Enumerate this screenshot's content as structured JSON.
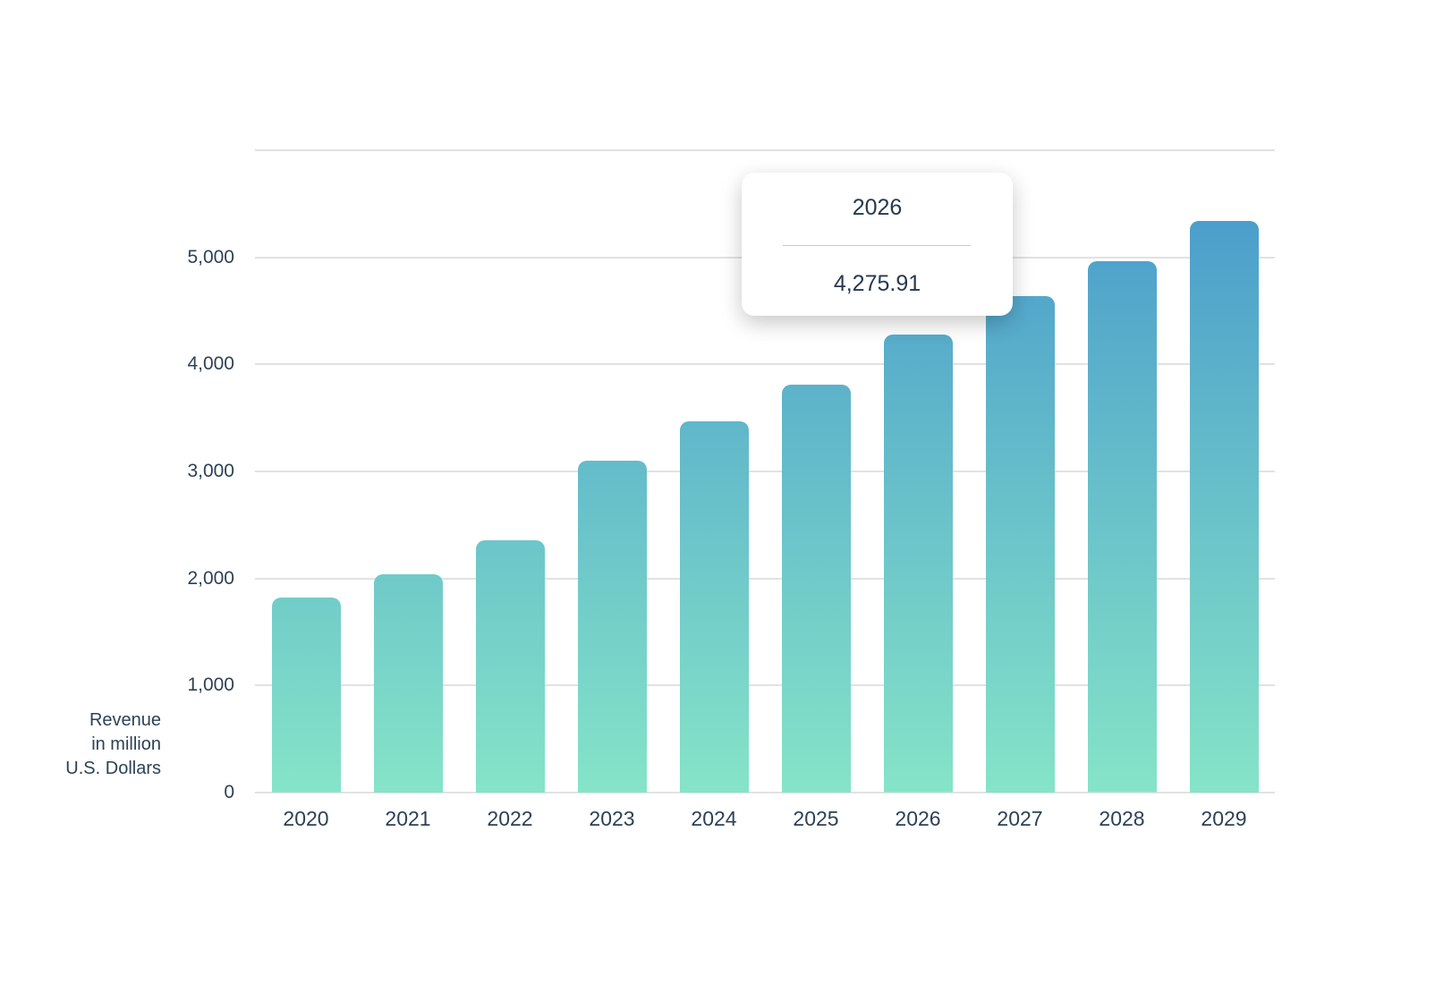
{
  "colors": {
    "background": "#ffffff",
    "text": "#2e4156",
    "gridline": "#e2e2e2",
    "bar_gradient_top": "#4596cc",
    "bar_gradient_bottom": "#85e4c8",
    "tooltip_divider": "#c9c9c9",
    "tooltip_text": "#27394e"
  },
  "tooltip": {
    "title": "2026",
    "value": "4,275.91"
  },
  "y_axis": {
    "title_lines": [
      "Revenue",
      "in million",
      "U.S. Dollars"
    ],
    "tick_labels": [
      "0",
      "1,000",
      "2,000",
      "3,000",
      "4,000",
      "5,000"
    ]
  },
  "chart_data": {
    "type": "bar",
    "title": "",
    "categories": [
      "2020",
      "2021",
      "2022",
      "2023",
      "2024",
      "2025",
      "2026",
      "2027",
      "2028",
      "2029"
    ],
    "values": [
      1820,
      2040,
      2360,
      3100,
      3470,
      3810,
      4275.91,
      4640,
      4960,
      5340
    ],
    "xlabel": "",
    "ylabel": "Revenue in million U.S. Dollars",
    "ylim": [
      0,
      6000
    ],
    "ytick_interval": 1000,
    "ytick_labeled_max": 5000,
    "grid": true,
    "legend_position": "none",
    "bar_gradient": {
      "top": "#4596cc",
      "bottom": "#85e4c8"
    },
    "highlighted_category": "2026",
    "tooltip": {
      "category": "2026",
      "value_label": "4,275.91"
    }
  }
}
